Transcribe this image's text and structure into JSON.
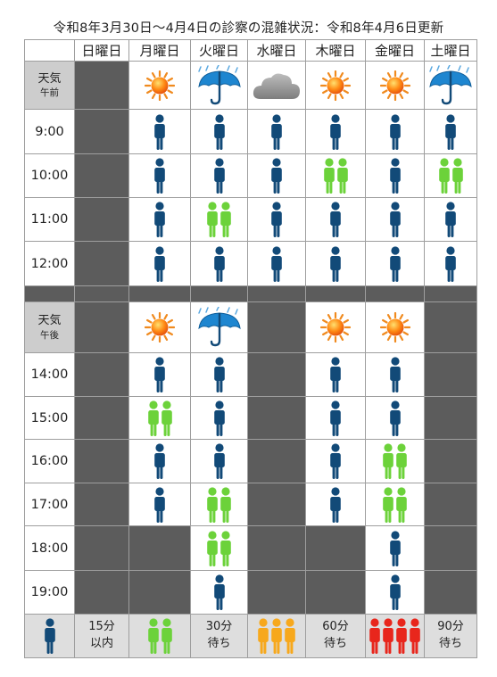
{
  "title": "令和8年3月30日〜4月4日の診察の混雑状況：令和8年4月6日更新",
  "days": [
    "日曜日",
    "月曜日",
    "火曜日",
    "水曜日",
    "木曜日",
    "金曜日",
    "土曜日"
  ],
  "morning": {
    "weather_label": "天気",
    "period_label": "午前",
    "weather": [
      "closed",
      "sun",
      "rain",
      "cloud",
      "sun",
      "sun",
      "rain"
    ],
    "slots": [
      {
        "time": "9:00",
        "levels": [
          "closed",
          1,
          1,
          1,
          1,
          1,
          1
        ]
      },
      {
        "time": "10:00",
        "levels": [
          "closed",
          1,
          1,
          1,
          2,
          1,
          2
        ]
      },
      {
        "time": "11:00",
        "levels": [
          "closed",
          1,
          2,
          1,
          1,
          1,
          1
        ]
      },
      {
        "time": "12:00",
        "levels": [
          "closed",
          1,
          1,
          1,
          1,
          1,
          1
        ]
      }
    ]
  },
  "afternoon": {
    "weather_label": "天気",
    "period_label": "午後",
    "weather": [
      "closed",
      "sun",
      "rain",
      "closed",
      "sun",
      "sun",
      "closed"
    ],
    "slots": [
      {
        "time": "14:00",
        "levels": [
          "closed",
          1,
          1,
          "closed",
          1,
          1,
          "closed"
        ]
      },
      {
        "time": "15:00",
        "levels": [
          "closed",
          2,
          1,
          "closed",
          1,
          1,
          "closed"
        ]
      },
      {
        "time": "16:00",
        "levels": [
          "closed",
          1,
          1,
          "closed",
          1,
          2,
          "closed"
        ]
      },
      {
        "time": "17:00",
        "levels": [
          "closed",
          1,
          2,
          "closed",
          1,
          2,
          "closed"
        ]
      },
      {
        "time": "18:00",
        "levels": [
          "closed",
          "closed",
          2,
          "closed",
          "closed",
          1,
          "closed"
        ]
      },
      {
        "time": "19:00",
        "levels": [
          "closed",
          "closed",
          1,
          "closed",
          "closed",
          1,
          "closed"
        ]
      }
    ]
  },
  "legend": [
    {
      "level": 1,
      "line1": "15分",
      "line2": "以内"
    },
    {
      "level": 2,
      "line1": "30分",
      "line2": "待ち"
    },
    {
      "level": 3,
      "line1": "60分",
      "line2": "待ち"
    },
    {
      "level": 4,
      "line1": "90分",
      "line2": "待ち"
    }
  ],
  "colors": {
    "level1": "#124a78",
    "level2": "#6cd23a",
    "level3": "#f7a81c",
    "level4": "#e8261c",
    "closed": "#5c5c5c",
    "label_bg": "#cdcdcd",
    "legend_bg": "#dedede",
    "border": "#9e9e9e"
  },
  "icons": {
    "sun": "sun-icon",
    "rain": "umbrella-rain-icon",
    "cloud": "cloud-icon",
    "person": "person-icon"
  }
}
